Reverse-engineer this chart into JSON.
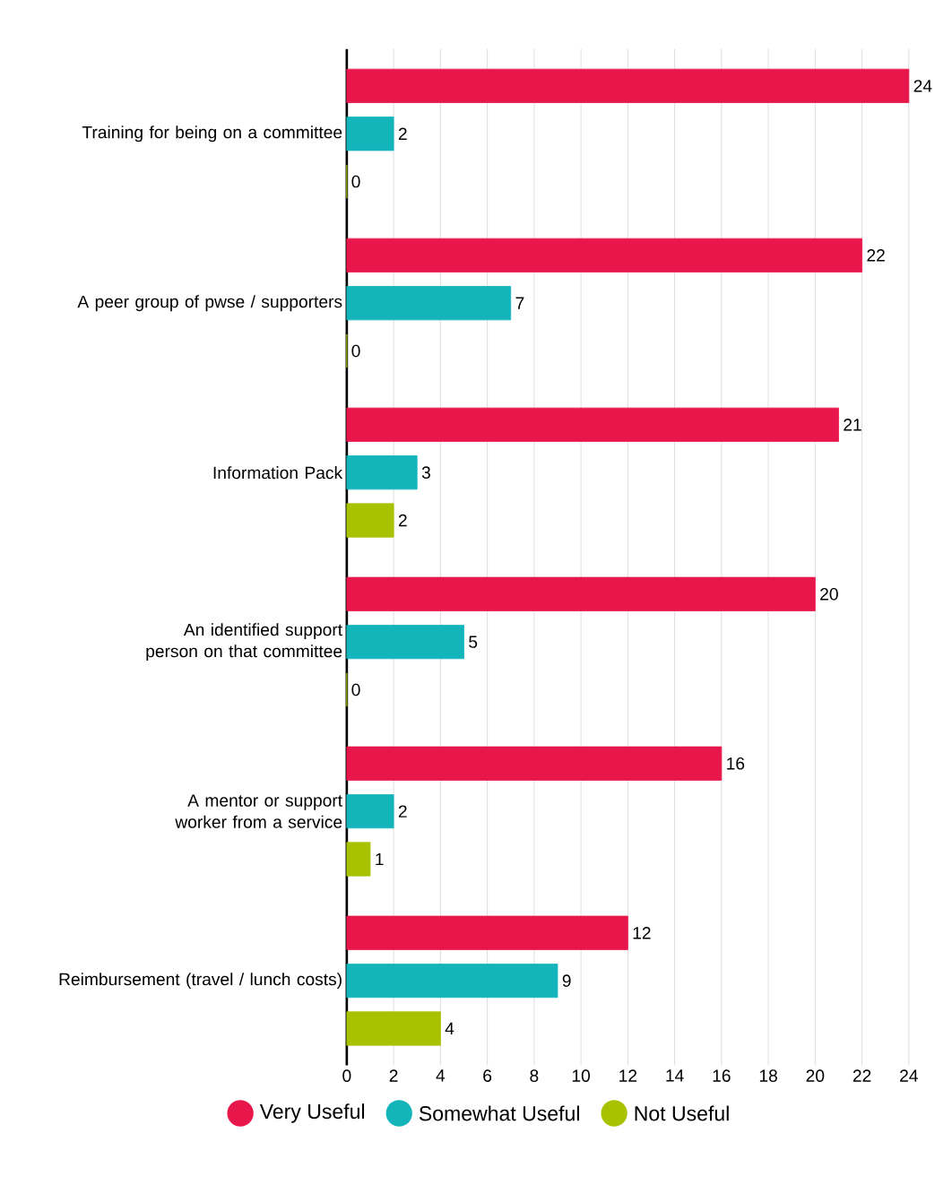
{
  "chart_data": {
    "type": "bar",
    "orientation": "horizontal",
    "categories": [
      "Training for being on a committee",
      "A peer group of pwse / supporters",
      "Information Pack",
      "An identified support person on that committee",
      "A mentor or support worker from a service",
      "Reimbursement (travel / lunch costs)"
    ],
    "series": [
      {
        "name": "Very Useful",
        "color": "#e8174b",
        "values": [
          24,
          22,
          21,
          20,
          16,
          12
        ]
      },
      {
        "name": "Somewhat Useful",
        "color": "#13b5bb",
        "values": [
          2,
          7,
          3,
          5,
          2,
          9
        ]
      },
      {
        "name": "Not Useful",
        "color": "#a8c200",
        "values": [
          0,
          0,
          2,
          0,
          1,
          4
        ]
      }
    ],
    "xlim": [
      0,
      24
    ],
    "xticks": [
      0,
      2,
      4,
      6,
      8,
      10,
      12,
      14,
      16,
      18,
      20,
      22,
      24
    ],
    "grid": "x",
    "legend": "bottom",
    "data_labels": true
  }
}
